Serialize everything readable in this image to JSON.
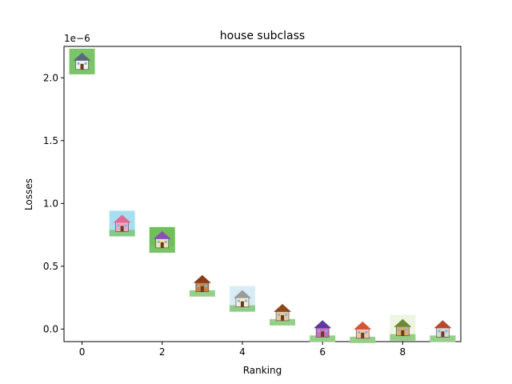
{
  "chart_data": {
    "type": "scatter",
    "title": "house subclass",
    "xlabel": "Ranking",
    "ylabel": "Losses",
    "y_offset_label": "1e−6",
    "xlim": [
      -0.45,
      9.45
    ],
    "ylim": [
      -0.1,
      2.25
    ],
    "x_ticks": [
      0,
      2,
      4,
      6,
      8
    ],
    "x_tick_labels": [
      "0",
      "2",
      "4",
      "6",
      "8"
    ],
    "y_ticks": [
      0.0,
      0.5,
      1.0,
      1.5,
      2.0
    ],
    "y_tick_labels": [
      "0.0",
      "0.5",
      "1.0",
      "1.5",
      "2.0"
    ],
    "grid": false,
    "marker": "house thumbnail images",
    "points": [
      {
        "x": 0,
        "y": 2.13,
        "icon": "white-house-icon"
      },
      {
        "x": 1,
        "y": 0.84,
        "icon": "pink-castle-icon"
      },
      {
        "x": 2,
        "y": 0.71,
        "icon": "purple-roof-house-icon"
      },
      {
        "x": 3,
        "y": 0.36,
        "icon": "row-houses-icon"
      },
      {
        "x": 4,
        "y": 0.24,
        "icon": "cottage-with-trees-icon"
      },
      {
        "x": 5,
        "y": 0.13,
        "icon": "small-hut-icon"
      },
      {
        "x": 6,
        "y": 0.0,
        "icon": "colorful-houses-icon"
      },
      {
        "x": 7,
        "y": -0.01,
        "icon": "pink-cottage-icon"
      },
      {
        "x": 8,
        "y": 0.01,
        "icon": "village-icon"
      },
      {
        "x": 9,
        "y": 0.0,
        "icon": "brick-roof-icon"
      }
    ]
  }
}
